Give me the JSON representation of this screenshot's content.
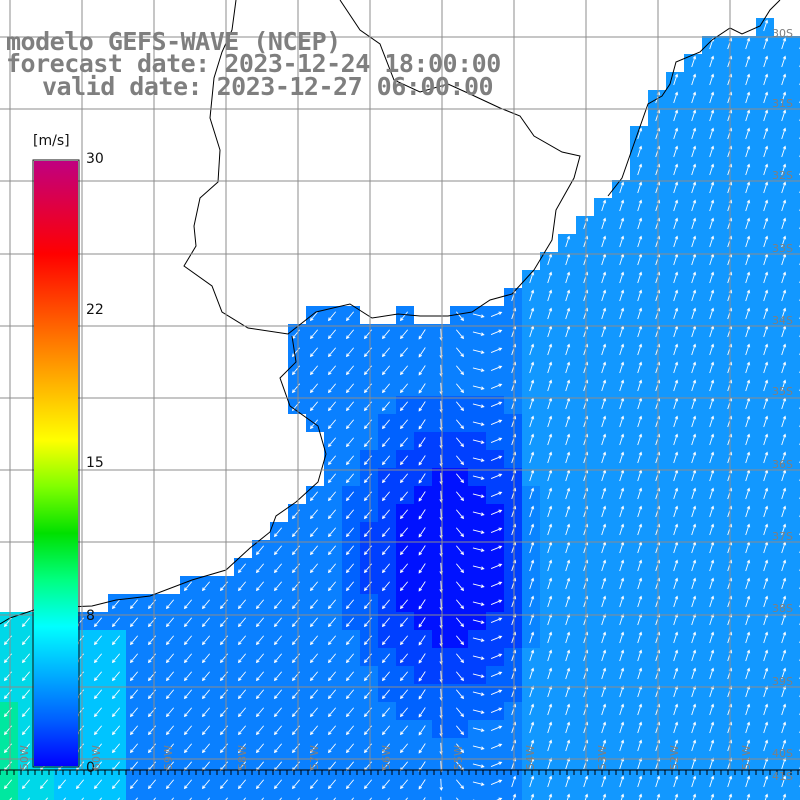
{
  "titles": {
    "model": "modelo GEFS-WAVE (NCEP)",
    "forecast": "forecast date: 2023-12-24 18:00:00",
    "valid": "valid date: 2023-12-27 06:00:00"
  },
  "colorbar": {
    "unit": "[m/s]",
    "ticks": [
      {
        "value": 30,
        "label": "30"
      },
      {
        "value": 22,
        "label": "22"
      },
      {
        "value": 15,
        "label": "15"
      },
      {
        "value": 8,
        "label": "8"
      },
      {
        "value": 0,
        "label": "0"
      }
    ],
    "colors": [
      "#0000ff",
      "#0060ff",
      "#00b0ff",
      "#00ffff",
      "#00ff80",
      "#00e000",
      "#80ff00",
      "#ffff00",
      "#ffc000",
      "#ff8000",
      "#ff4000",
      "#ff0000",
      "#e00040",
      "#c00080"
    ]
  },
  "grid": {
    "lat_labels": [
      "30S",
      "31S",
      "32S",
      "33S",
      "34S",
      "35S",
      "36S",
      "37S",
      "38S",
      "39S",
      "40S",
      "41S"
    ],
    "lon_labels": [
      "60W",
      "59W",
      "58W",
      "57W",
      "56W",
      "55W",
      "54W",
      "53W",
      "52W",
      "51W",
      "50W"
    ]
  },
  "colors": {
    "title_gray": "#7f7f7f",
    "land": "#ffffff",
    "arrow": "#ffffff",
    "coast": "#000000",
    "gridline": "#8c8c8c"
  }
}
